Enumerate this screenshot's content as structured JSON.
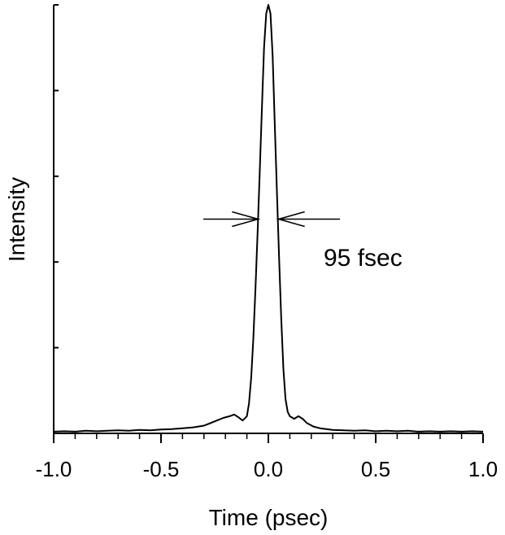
{
  "chart_data": {
    "type": "line",
    "title": "",
    "xlabel": "Time (psec)",
    "ylabel": "Intensity",
    "xlim": [
      -1.0,
      1.0
    ],
    "ylim": [
      0,
      1.0
    ],
    "x_ticks": [
      "-1.0",
      "-0.5",
      "0.0",
      "0.5",
      "1.0"
    ],
    "y_tick_labels_shown": false,
    "grid": false,
    "annotation": {
      "text": "95 fsec",
      "fwhm_fs": 95,
      "arrow_left_at": -0.048,
      "arrow_right_at": 0.048,
      "arrow_y": 0.5
    },
    "series": [
      {
        "x": [
          -1.0,
          -0.95,
          -0.9,
          -0.85,
          -0.8,
          -0.75,
          -0.7,
          -0.65,
          -0.6,
          -0.55,
          -0.5,
          -0.45,
          -0.4,
          -0.35,
          -0.3,
          -0.27,
          -0.24,
          -0.21,
          -0.18,
          -0.16,
          -0.14,
          -0.12,
          -0.1,
          -0.09,
          -0.08,
          -0.07,
          -0.06,
          -0.05,
          -0.04,
          -0.03,
          -0.02,
          -0.01,
          0.0,
          0.01,
          0.02,
          0.03,
          0.04,
          0.05,
          0.06,
          0.07,
          0.08,
          0.09,
          0.1,
          0.12,
          0.14,
          0.16,
          0.18,
          0.21,
          0.24,
          0.27,
          0.3,
          0.35,
          0.4,
          0.45,
          0.5,
          0.55,
          0.6,
          0.65,
          0.7,
          0.75,
          0.8,
          0.85,
          0.9,
          0.95,
          1.0
        ],
        "y": [
          0.004,
          0.005,
          0.004,
          0.006,
          0.005,
          0.006,
          0.007,
          0.006,
          0.008,
          0.007,
          0.009,
          0.01,
          0.012,
          0.014,
          0.018,
          0.024,
          0.03,
          0.036,
          0.04,
          0.044,
          0.038,
          0.03,
          0.04,
          0.07,
          0.13,
          0.22,
          0.34,
          0.47,
          0.61,
          0.76,
          0.9,
          0.98,
          1.0,
          0.98,
          0.88,
          0.72,
          0.56,
          0.41,
          0.27,
          0.15,
          0.08,
          0.05,
          0.04,
          0.034,
          0.04,
          0.034,
          0.024,
          0.016,
          0.012,
          0.01,
          0.008,
          0.007,
          0.006,
          0.007,
          0.005,
          0.006,
          0.005,
          0.006,
          0.004,
          0.005,
          0.004,
          0.005,
          0.004,
          0.005,
          0.004
        ]
      }
    ]
  }
}
